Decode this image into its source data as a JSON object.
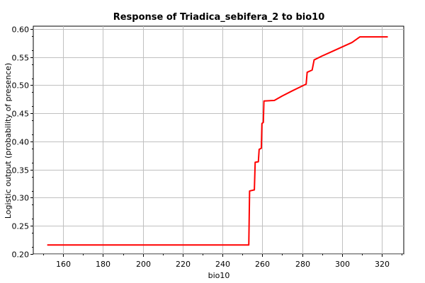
{
  "chart_data": {
    "type": "line",
    "title": "Response of Triadica_sebifera_2 to bio10",
    "xlabel": "bio10",
    "ylabel": "Logistic output (probability of presence)",
    "xlim": [
      145,
      331
    ],
    "ylim": [
      0.2,
      0.605
    ],
    "x_ticks": [
      160,
      180,
      200,
      220,
      240,
      260,
      280,
      300,
      320
    ],
    "y_ticks": [
      0.2,
      0.25,
      0.3,
      0.35,
      0.4,
      0.45,
      0.5,
      0.55,
      0.6
    ],
    "x_tick_labels": [
      "160",
      "180",
      "200",
      "220",
      "240",
      "260",
      "280",
      "300",
      "320"
    ],
    "y_tick_labels": [
      "0.20",
      "0.25",
      "0.30",
      "0.35",
      "0.40",
      "0.45",
      "0.50",
      "0.55",
      "0.60"
    ],
    "grid": true,
    "series": [
      {
        "color": "#ff0000",
        "x": [
          152,
          253.2,
          253.6,
          256,
          256.4,
          258,
          258.4,
          259.5,
          259.8,
          260.5,
          260.8,
          266,
          270,
          275,
          282,
          282.5,
          285,
          286,
          290,
          295,
          300,
          305,
          309,
          315,
          323
        ],
        "y": [
          0.216,
          0.216,
          0.312,
          0.314,
          0.363,
          0.364,
          0.386,
          0.388,
          0.432,
          0.434,
          0.472,
          0.473,
          0.481,
          0.49,
          0.502,
          0.523,
          0.527,
          0.545,
          0.552,
          0.56,
          0.568,
          0.576,
          0.586,
          0.586,
          0.586
        ]
      }
    ]
  }
}
